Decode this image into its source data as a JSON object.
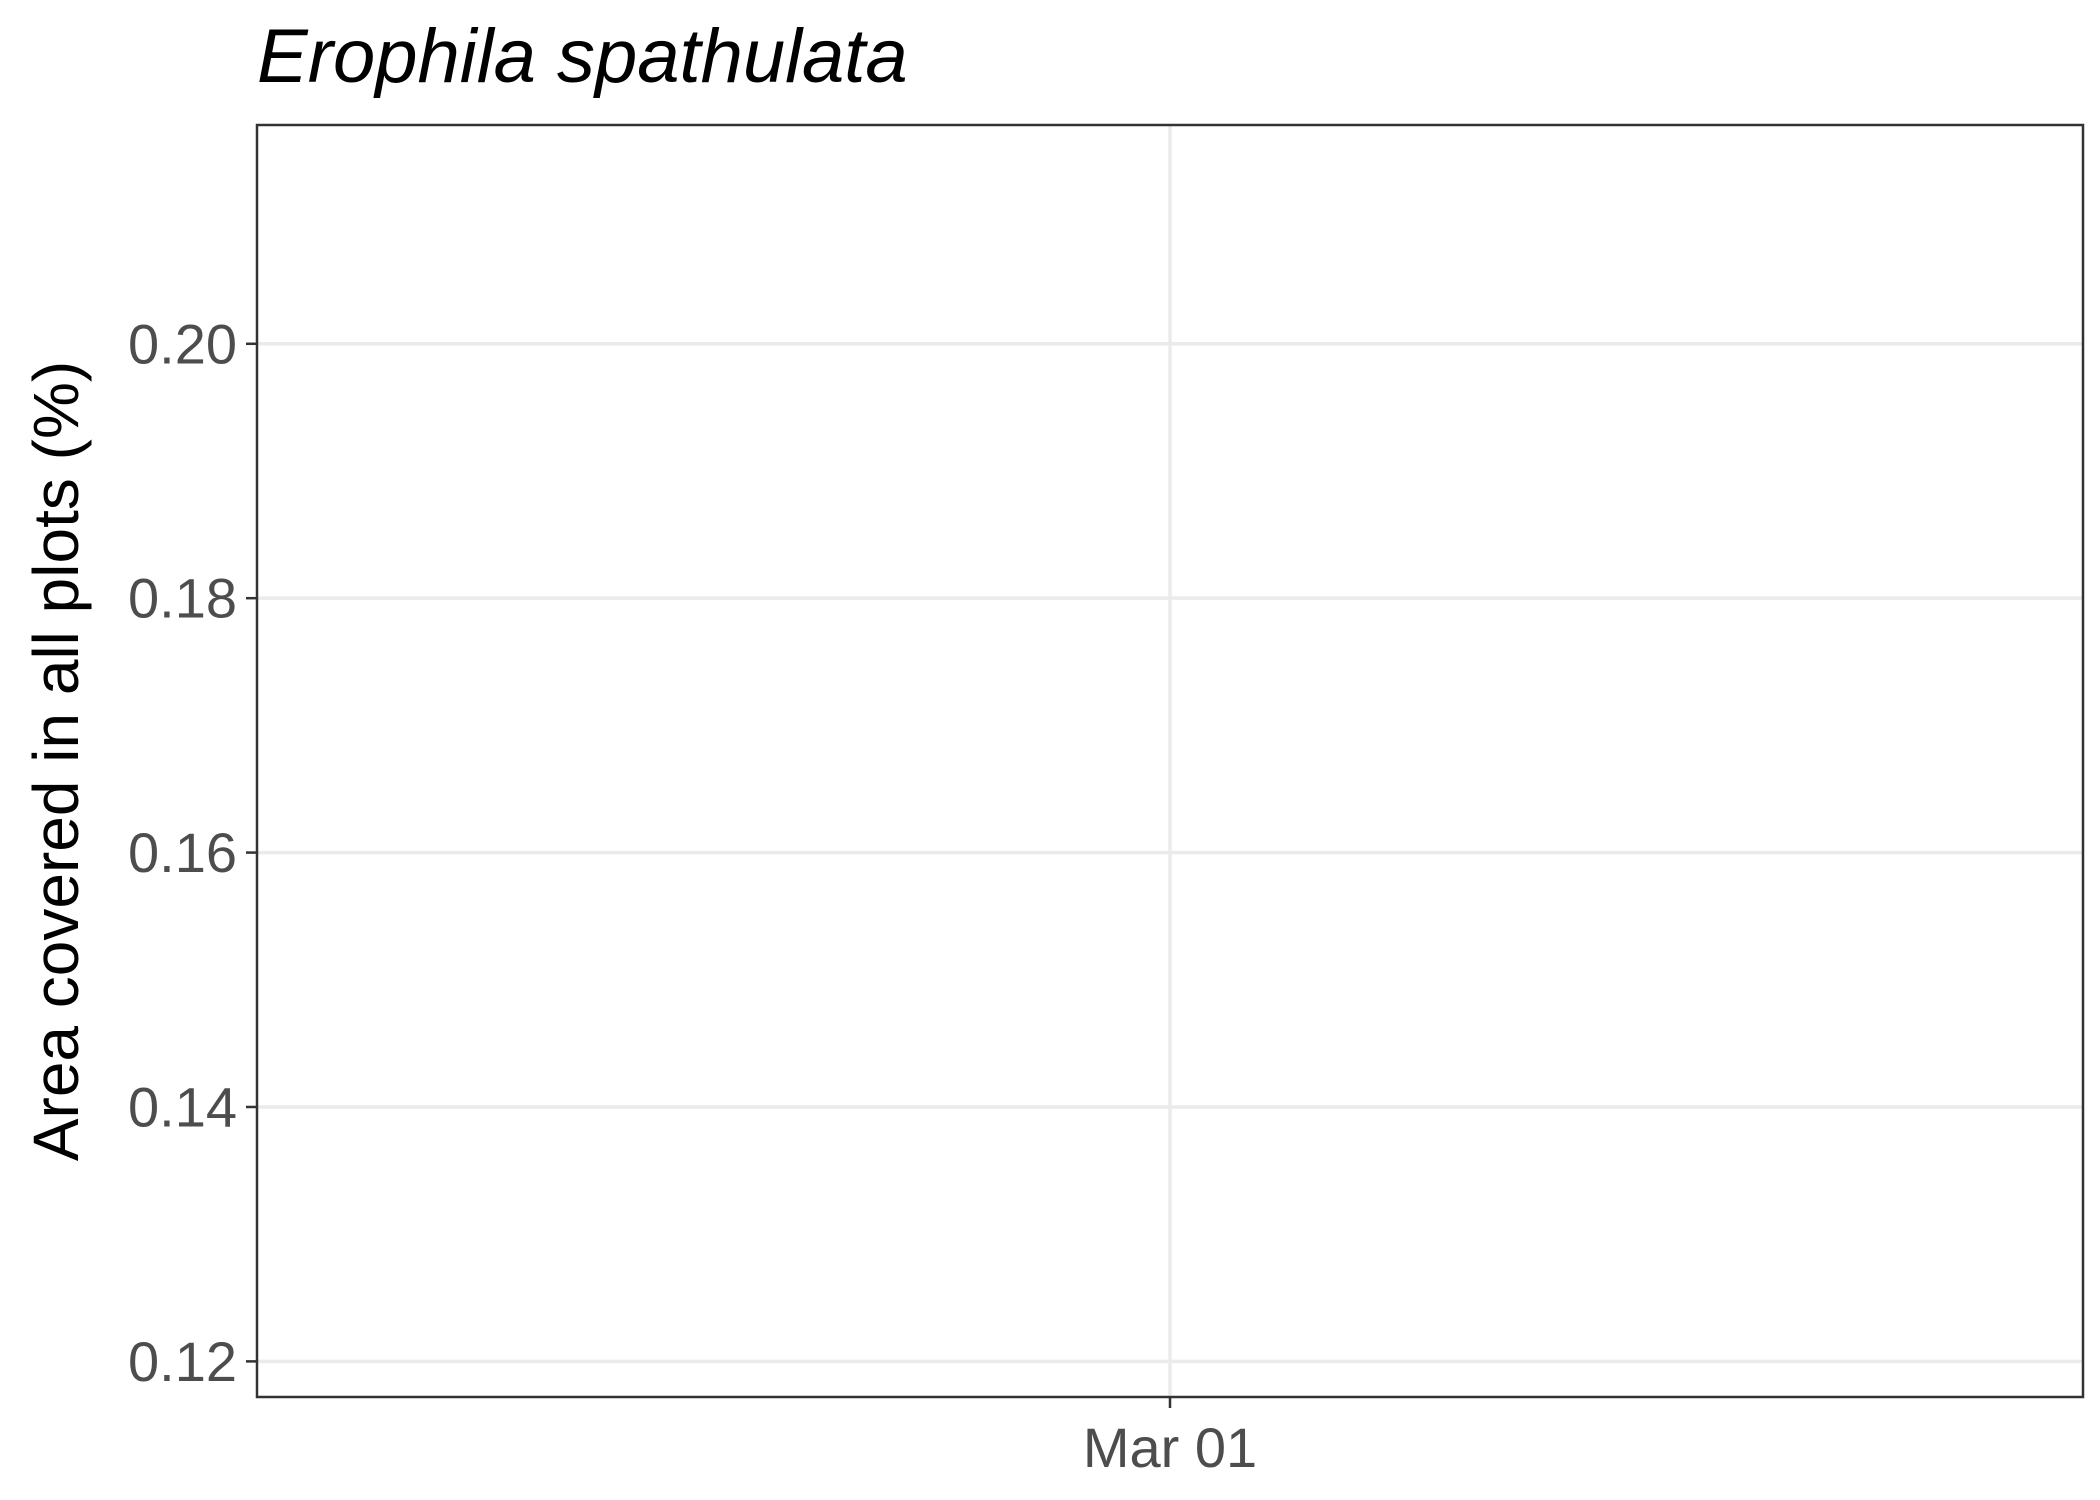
{
  "chart_data": {
    "type": "line",
    "title": "Erophila spathulata",
    "xlabel": "",
    "ylabel": "Area covered in all plots (%)",
    "x_ticks": [
      "Mar 01"
    ],
    "y_ticks": [
      0.12,
      0.14,
      0.16,
      0.18,
      0.2
    ],
    "y_tick_labels": [
      "0.12",
      "0.14",
      "0.16",
      "0.18",
      "0.20"
    ],
    "ylim": [
      0.1172,
      0.2172
    ],
    "series": [],
    "grid": true,
    "legend": "none"
  }
}
